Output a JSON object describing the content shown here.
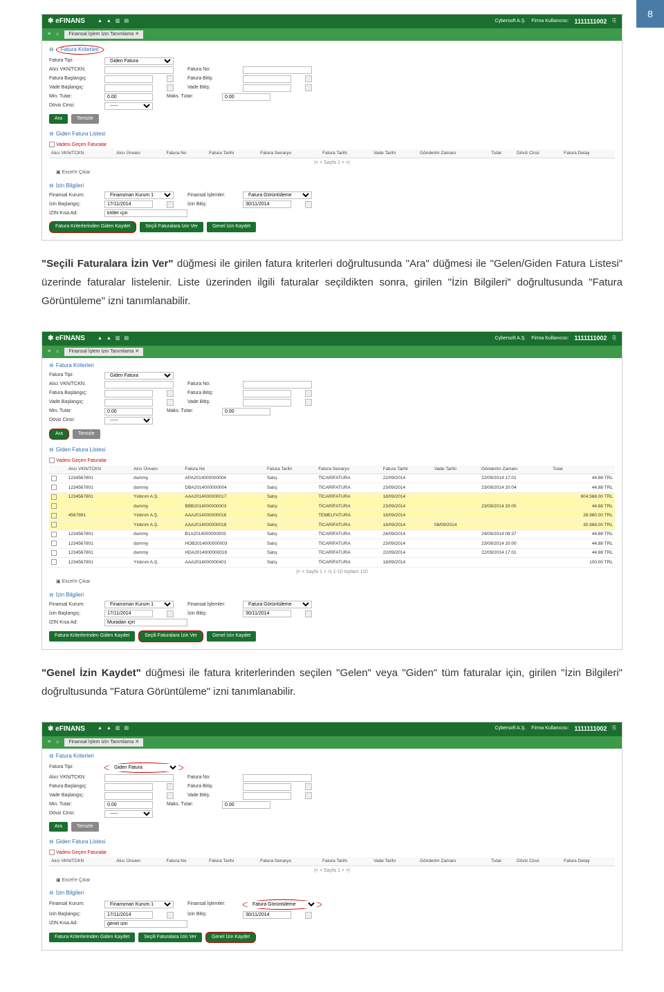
{
  "page_number": "8",
  "paragraphs": {
    "p1_part1": "\"Seçili Faturalara İzin Ver\"",
    "p1_part2": " düğmesi ile girilen fatura kriterleri doğrultusunda \"Ara\" düğmesi ile \"Gelen/Giden Fatura Listesi\" üzerinde faturalar listelenir. Liste üzerinden ilgili faturalar seçildikten sonra, girilen \"İzin Bilgileri\" doğrultusunda \"Fatura Görüntüleme\" izni tanımlanabilir.",
    "p2_part1": "\"Genel İzin Kaydet\"",
    "p2_part2": " düğmesi ile fatura kriterlerinden seçilen \"Gelen\" veya \"Giden\" tüm faturalar için, girilen \"İzin Bilgileri\" doğrultusunda \"Fatura Görüntüleme\" izni tanımlanabilir."
  },
  "app": {
    "logo": "✱ eFINANS",
    "firm_label": "Cybersoft A.Ş.",
    "firm_kullanici": "Firma Kullanıcısı:",
    "user_id": "1111111002",
    "tab_title": "Finansal İşlem İzin Tanımlama"
  },
  "sections": {
    "fatura_kriterleri": "Fatura Kriterleri",
    "giden_fatura_listesi": "Giden Fatura Listesi",
    "izin_bilgileri": "İzin Bilgileri"
  },
  "form": {
    "fatura_tipi": "Fatura Tipi:",
    "alici_vkn": "Alıcı VKN/TCKN:",
    "fatura_baslangic": "Fatura Başlangıç:",
    "vade_baslangic": "Vade Başlangıç:",
    "min_tutar": "Min. Tutar:",
    "doviz_cinsi": "Döviz Cinsi:",
    "fatura_no": "Fatura No:",
    "fatura_bitis": "Fatura Bitiş:",
    "vade_bitis": "Vade Bitiş:",
    "maks_tutar": "Maks. Tutar:",
    "fatura_tipi_val": "Giden Fatura",
    "zero": "0.00",
    "dashes": "-----"
  },
  "buttons": {
    "ara": "Ara",
    "temizle": "Temizle",
    "fatura_kriter_izin": "Fatura Kriterlerinden Giden Kaydet",
    "secili_izin": "Seçili Faturalara İzin Ver",
    "genel_izin": "Genel İzin Kaydet"
  },
  "list": {
    "gecen_faturalar": "Vadesi Geçen Faturalar",
    "excele_cikar": "Excel'e Çıkar"
  },
  "table": {
    "headers": {
      "alici_vkn": "Alıcı VKN/TCKN",
      "alici_unvan": "Alıcı Ünvanı",
      "fatura_no": "Fatura No",
      "fatura_tarihi": "Fatura Tarihi",
      "fatura_senaryo": "Fatura Senaryo",
      "fatura_tarihi2": "Fatura Tarihi",
      "vade_tarihi": "Vade Tarihi",
      "gonderim_zamani": "Gönderim Zamanı",
      "tutar": "Tutar",
      "doviz": "Döviz Cinsi",
      "fatura_detay": "Fatura Detay"
    },
    "rows": [
      {
        "vkn": "1234567801",
        "unvan": "dummy",
        "fno": "APA2014000000004",
        "tip": "Satış",
        "sen": "TİCARİFATURA",
        "tarih": "22/09/2014",
        "vade": "",
        "gz": "22/09/2014 17:01",
        "tutar": "44.88 TRL"
      },
      {
        "vkn": "1234567801",
        "unvan": "dummy",
        "fno": "DBA2014000000004",
        "tip": "Satış",
        "sen": "TİCARİFATURA",
        "tarih": "23/09/2014",
        "vade": "",
        "gz": "23/09/2014 20:04",
        "tutar": "44.88 TRL"
      },
      {
        "vkn": "1234567801",
        "unvan": "Yıldırım A.Ş.",
        "fno": "AAA2014000000017",
        "tip": "Satış",
        "sen": "TİCARİFATURA",
        "tarih": "18/09/2014",
        "vade": "",
        "gz": "",
        "tutar": "604.568.00 TRL"
      },
      {
        "vkn": "",
        "unvan": "dummy",
        "fno": "BBB2014000000003",
        "tip": "Satış",
        "sen": "TİCARİFATURA",
        "tarih": "23/09/2014",
        "vade": "",
        "gz": "23/09/2014 20:05",
        "tutar": "44.88 TRL"
      },
      {
        "vkn": "4567891",
        "unvan": "Yıldırım A.Ş.",
        "fno": "AAA2014000000016",
        "tip": "Satış",
        "sen": "TEMELFATURA",
        "tarih": "18/09/2014",
        "vade": "",
        "gz": "",
        "tutar": "28.960.00 TRL"
      },
      {
        "vkn": "",
        "unvan": "Yıldırım A.Ş.",
        "fno": "AAA2014000000018",
        "tip": "Satış",
        "sen": "TİCARİFATURA",
        "tarih": "18/09/2014",
        "vade": "08/09/2014",
        "gz": "",
        "tutar": "30.968.00 TRL"
      },
      {
        "vkn": "1234567801",
        "unvan": "dummy",
        "fno": "B1A2014000000003",
        "tip": "Satış",
        "sen": "TİCARİFATURA",
        "tarih": "24/09/2014",
        "vade": "",
        "gz": "24/09/2014 09:37",
        "tutar": "44.88 TRL"
      },
      {
        "vkn": "1234567801",
        "unvan": "dummy",
        "fno": "HOB2014000000003",
        "tip": "Satış",
        "sen": "TİCARİFATURA",
        "tarih": "23/09/2014",
        "vade": "",
        "gz": "23/09/2014 20:00",
        "tutar": "44.88 TRL"
      },
      {
        "vkn": "1234567801",
        "unvan": "dummy",
        "fno": "HDA2014000000018",
        "tip": "Satış",
        "sen": "TİCARİFATURA",
        "tarih": "22/09/2014",
        "vade": "",
        "gz": "22/09/2014 17:01",
        "tutar": "44.88 TRL"
      },
      {
        "vkn": "1234567801",
        "unvan": "Yıldırım A.Ş.",
        "fno": "AAA2014000000401",
        "tip": "Satış",
        "sen": "TİCARİFATURA",
        "tarih": "18/09/2014",
        "vade": "",
        "gz": "",
        "tutar": "100.00 TRL"
      }
    ],
    "pager": "1-10 toplam 110"
  },
  "izin": {
    "finansal_kurum": "Finansal Kurum:",
    "izin_baslangic": "İzin Başlangıç:",
    "izin_kisa_ad": "İZIN Kısa Ad:",
    "finansal_islemler": "Finansal İşlemler:",
    "izin_bitis": "İzin Bitiş:",
    "kurum_val": "Finansman Kurum 1",
    "izin_baslangic_val": "17/11/2014",
    "izin_bitis_val": "30/11/2014",
    "islem_val": "Fatura Görüntüleme",
    "kisa_ad_1": "kritler için",
    "kisa_ad_2": "Muradan için",
    "kisa_ad_3": "genel izin"
  },
  "styling": {
    "colors": {
      "header_green": "#1a6e2e",
      "subheader_green": "#3d9a4a",
      "page_num_bg": "#4a7ba6",
      "highlight_yellow": "#fff9b0",
      "circled_red": "#c00",
      "section_title": "#2a6cb3"
    }
  }
}
